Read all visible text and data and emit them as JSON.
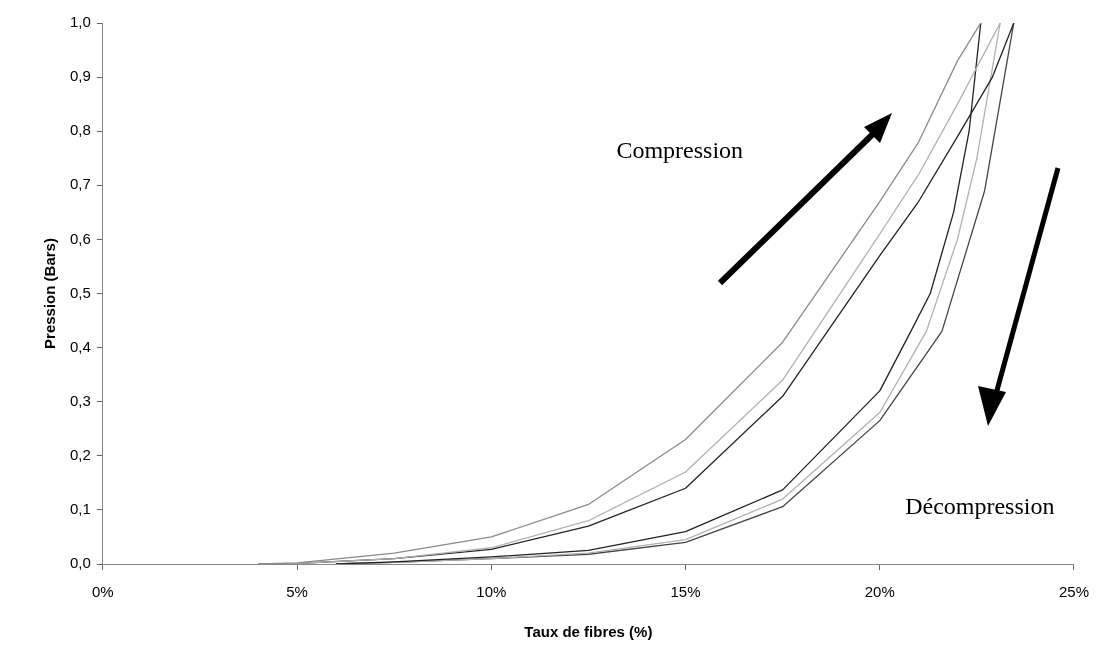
{
  "chart_data": {
    "type": "line",
    "xlabel": "Taux de fibres (%)",
    "ylabel": "Pression (Bars)",
    "xlim": [
      0,
      25
    ],
    "xticks": [
      {
        "value": 0,
        "label": "0%"
      },
      {
        "value": 5,
        "label": "5%"
      },
      {
        "value": 10,
        "label": "10%"
      },
      {
        "value": 15,
        "label": "15%"
      },
      {
        "value": 20,
        "label": "20%"
      },
      {
        "value": 25,
        "label": "25%"
      }
    ],
    "ylim": [
      0,
      1
    ],
    "yticks": [
      {
        "value": 0,
        "label": "0,0"
      },
      {
        "value": 0.1,
        "label": "0,1"
      },
      {
        "value": 0.2,
        "label": "0,2"
      },
      {
        "value": 0.3,
        "label": "0,3"
      },
      {
        "value": 0.4,
        "label": "0,4"
      },
      {
        "value": 0.5,
        "label": "0,5"
      },
      {
        "value": 0.6,
        "label": "0,6"
      },
      {
        "value": 0.7,
        "label": "0,7"
      },
      {
        "value": 0.8,
        "label": "0,8"
      },
      {
        "value": 0.9,
        "label": "0,9"
      },
      {
        "value": 1,
        "label": "1,0"
      }
    ],
    "grid": false,
    "legend": false,
    "marker": "none",
    "series": [
      {
        "color": "#8a8a8a",
        "x": [
          4,
          5,
          7.5,
          10,
          12.5,
          15,
          17.5,
          20,
          21,
          22,
          22.6
        ],
        "values": [
          0,
          0.002,
          0.02,
          0.05,
          0.11,
          0.23,
          0.41,
          0.67,
          0.78,
          0.93,
          1.0
        ]
      },
      {
        "color": "#b0b0b0",
        "x": [
          4,
          5,
          7.5,
          10,
          12.5,
          15,
          17.5,
          20,
          21,
          22,
          23.1
        ],
        "values": [
          0,
          0.001,
          0.01,
          0.03,
          0.08,
          0.17,
          0.34,
          0.61,
          0.72,
          0.85,
          1.0
        ]
      },
      {
        "color": "#222222",
        "x": [
          4,
          5,
          7.5,
          10,
          12.5,
          15,
          17.5,
          20,
          21,
          22,
          22.9,
          23.45
        ],
        "values": [
          0,
          0.001,
          0.01,
          0.027,
          0.07,
          0.14,
          0.31,
          0.57,
          0.67,
          0.79,
          0.9,
          1.0
        ]
      },
      {
        "color": "#222222",
        "x": [
          22.6,
          22.3,
          21.9,
          21.3,
          20.8,
          20,
          17.5,
          15,
          12.5,
          10,
          7.5,
          6
        ],
        "values": [
          1.0,
          0.8,
          0.65,
          0.5,
          0.43,
          0.32,
          0.137,
          0.06,
          0.025,
          0.013,
          0.004,
          0
        ]
      },
      {
        "color": "#b0b0b0",
        "x": [
          23.1,
          22.5,
          22,
          21.2,
          20,
          17.5,
          15,
          12.5,
          10,
          7.5,
          6
        ],
        "values": [
          1.0,
          0.75,
          0.6,
          0.43,
          0.28,
          0.12,
          0.045,
          0.02,
          0.01,
          0.003,
          0
        ]
      },
      {
        "color": "#444444",
        "x": [
          23.45,
          22.7,
          21.6,
          20,
          17.5,
          15,
          12.5,
          10,
          7.5,
          6
        ],
        "values": [
          1.0,
          0.69,
          0.43,
          0.265,
          0.106,
          0.04,
          0.018,
          0.01,
          0.003,
          0
        ]
      }
    ],
    "annotations": [
      "Compression",
      "Décompression"
    ]
  }
}
